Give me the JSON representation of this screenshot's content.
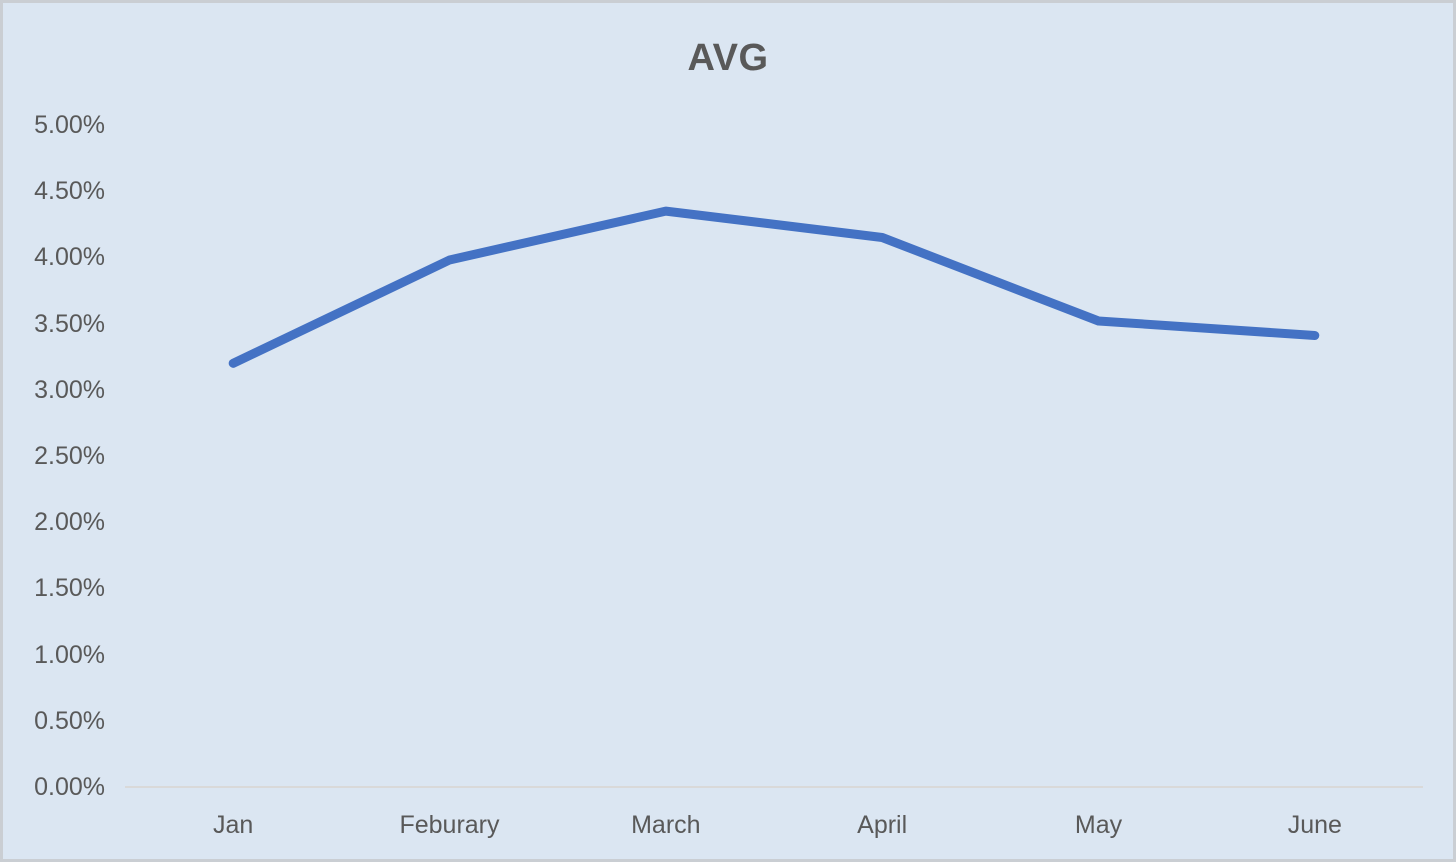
{
  "chart_data": {
    "type": "line",
    "title": "AVG",
    "categories": [
      "Jan",
      "Feburary",
      "March",
      "April",
      "May",
      "June"
    ],
    "series": [
      {
        "name": "AVG",
        "values": [
          3.2,
          3.98,
          4.35,
          4.15,
          3.52,
          3.41
        ]
      }
    ],
    "value_unit": "%",
    "xlabel": "",
    "ylabel": "",
    "ylim": [
      0,
      5
    ],
    "y_tick_step": 0.5,
    "y_tick_labels": [
      "5.00%",
      "4.50%",
      "4.00%",
      "3.50%",
      "3.00%",
      "2.50%",
      "2.00%",
      "1.50%",
      "1.00%",
      "0.50%",
      "0.00%"
    ],
    "grid": false,
    "legend_position": "none",
    "colors": {
      "line": "#4472C4",
      "background": "#DBE6F2",
      "text": "#595959",
      "axis_line": "#D9D9D9",
      "border": "#CACED3"
    }
  }
}
